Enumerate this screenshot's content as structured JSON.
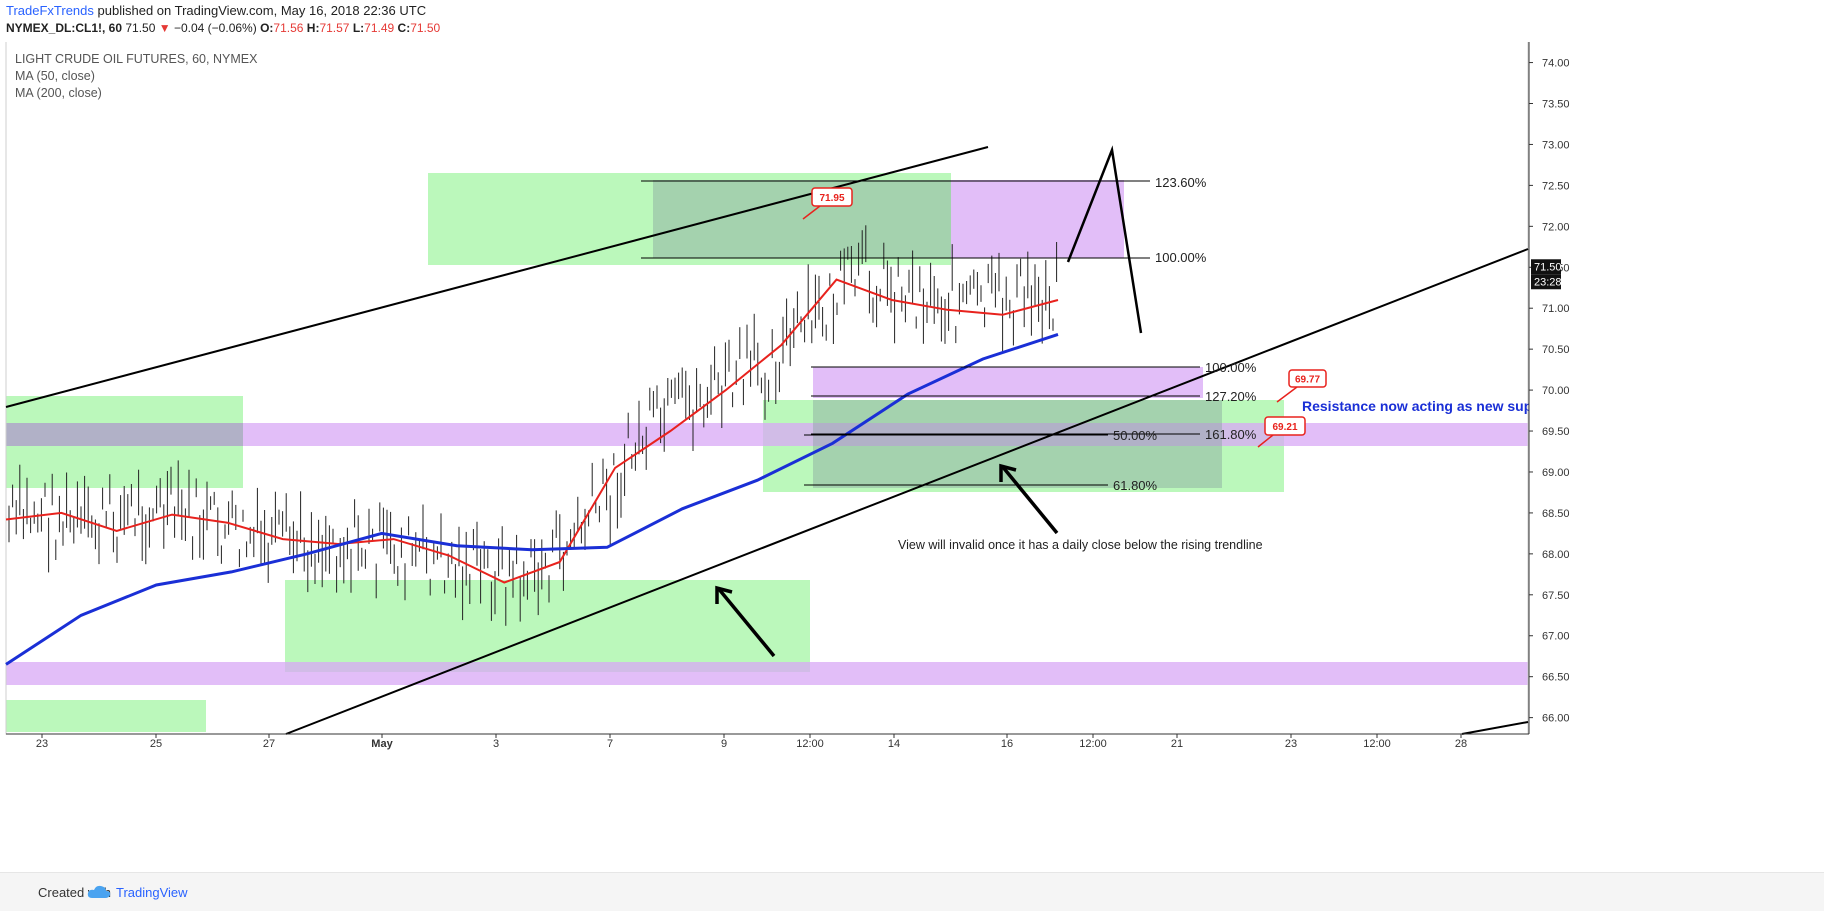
{
  "header": {
    "author": "TradeFxTrends",
    "published": " published on TradingView.com, May 16, 2018 22:36 UTC",
    "symbol": "NYMEX_DL:CL1!, 60",
    "last": "71.50",
    "change_arrow": "▼",
    "change": "−0.04 (−0.06%)",
    "o_label": "O:",
    "o": "71.56",
    "h_label": "H:",
    "h": "71.57",
    "l_label": "L:",
    "l": "71.49",
    "c_label": "C:",
    "c": "71.50"
  },
  "legend": {
    "title": "LIGHT CRUDE OIL FUTURES, 60, NYMEX",
    "ma50": "MA (50, close)",
    "ma200": "MA (200, close)"
  },
  "price_badge": "71.50",
  "countdown_badge": "23:28",
  "footer": {
    "created": "Created with",
    "brand": "TradingView"
  },
  "colors": {
    "up_green": "#9ef59e",
    "purple": "#d8a8f5",
    "ma50": "#e8221d",
    "ma200": "#1a2fd6",
    "callout": "#e8221d",
    "resistance_text": "#1a2fd6"
  },
  "chart_data": {
    "type": "line",
    "title": "LIGHT CRUDE OIL FUTURES, 60, NYMEX",
    "ylim": [
      65.8,
      74.3
    ],
    "yticks": [
      "74.00",
      "73.50",
      "73.00",
      "72.50",
      "72.00",
      "71.50",
      "71.00",
      "70.50",
      "70.00",
      "69.50",
      "69.00",
      "68.50",
      "68.00",
      "67.50",
      "67.00",
      "66.50",
      "66.00"
    ],
    "x_tick_labels": [
      "23",
      "25",
      "27",
      "May",
      "3",
      "7",
      "9",
      "12:00",
      "14",
      "16",
      "12:00",
      "21",
      "23",
      "12:00",
      "28"
    ],
    "series": [
      {
        "name": "MA (50, close)",
        "values": [
          68.42,
          68.5,
          68.28,
          68.48,
          68.38,
          68.18,
          68.12,
          68.18,
          67.98,
          67.65,
          67.9,
          69.05,
          69.5,
          70.0,
          70.55,
          71.35,
          71.1,
          70.98,
          70.92,
          71.1
        ]
      },
      {
        "name": "MA (200, close)",
        "values": [
          66.65,
          67.25,
          67.62,
          67.78,
          68.0,
          68.25,
          68.1,
          68.05,
          68.08,
          68.55,
          68.9,
          69.35,
          69.95,
          70.38,
          70.68
        ]
      }
    ],
    "annotations": {
      "callouts": [
        "71.95",
        "69.77",
        "69.21"
      ],
      "fib_upper": [
        "123.60%",
        "100.00%"
      ],
      "fib_lower": [
        "100.00%",
        "127.20%",
        "161.80%",
        "50.00%",
        "61.80%"
      ],
      "resistance_note": "Resistance now acting as new sup",
      "invalid_note": "View will invalid once it has a daily close below the rising trendline"
    }
  }
}
